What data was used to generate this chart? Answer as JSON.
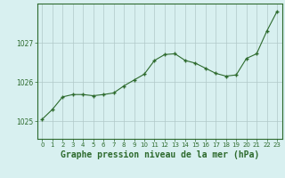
{
  "x": [
    0,
    1,
    2,
    3,
    4,
    5,
    6,
    7,
    8,
    9,
    10,
    11,
    12,
    13,
    14,
    15,
    16,
    17,
    18,
    19,
    20,
    21,
    22,
    23
  ],
  "y": [
    1025.05,
    1025.3,
    1025.62,
    1025.68,
    1025.68,
    1025.65,
    1025.68,
    1025.72,
    1025.9,
    1026.05,
    1026.2,
    1026.55,
    1026.7,
    1026.72,
    1026.55,
    1026.48,
    1026.35,
    1026.22,
    1026.15,
    1026.18,
    1026.6,
    1026.72,
    1027.3,
    1027.8
  ],
  "line_color": "#2d6a2d",
  "marker_color": "#2d6a2d",
  "background_color": "#d8f0f0",
  "grid_color": "#b0c8c8",
  "xlabel": "Graphe pression niveau de la mer (hPa)",
  "xlabel_fontsize": 7,
  "ytick_labels": [
    "1025",
    "1026",
    "1027"
  ],
  "ytick_values": [
    1025,
    1026,
    1027
  ],
  "ylim": [
    1024.55,
    1028.0
  ],
  "xlim": [
    -0.5,
    23.5
  ],
  "xtick_labels": [
    "0",
    "1",
    "2",
    "3",
    "4",
    "5",
    "6",
    "7",
    "8",
    "9",
    "10",
    "11",
    "12",
    "13",
    "14",
    "15",
    "16",
    "17",
    "18",
    "19",
    "20",
    "21",
    "22",
    "23"
  ],
  "tick_color": "#2d6a2d",
  "axis_color": "#2d6a2d",
  "border_color": "#2d6a2d",
  "figwidth": 3.2,
  "figheight": 2.0,
  "dpi": 100
}
